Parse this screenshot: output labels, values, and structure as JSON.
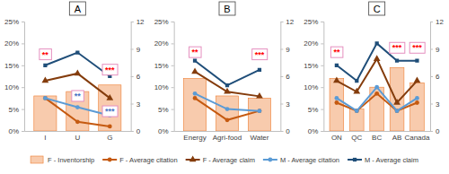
{
  "chart_data": [
    {
      "type": "bar",
      "title": "A",
      "categories": [
        "I",
        "U",
        "G"
      ],
      "series": [
        {
          "name": "F - Inventorship",
          "type": "bar",
          "color": "#f8cbad",
          "values": [
            8,
            9,
            10.5
          ]
        },
        {
          "name": "F - Average citation",
          "type": "line",
          "color": "#c55a11",
          "marker": "circle",
          "axis": "y2",
          "values": [
            3.6,
            1,
            0.5
          ]
        },
        {
          "name": "F - Average claim",
          "type": "line",
          "color": "#843c0c",
          "marker": "triangle",
          "axis": "y2",
          "values": [
            5.5,
            6.3,
            3.6
          ]
        },
        {
          "name": "M - Average citation",
          "type": "line",
          "color": "#5b9bd5",
          "marker": "circle",
          "axis": "y2",
          "values": [
            3.6,
            2.6,
            1.7
          ]
        },
        {
          "name": "M - Average claim",
          "type": "line",
          "color": "#1f4e79",
          "marker": "square",
          "axis": "y2",
          "values": [
            7.2,
            8.6,
            6
          ]
        }
      ],
      "ylim": [
        0,
        25
      ],
      "yticks": [
        {
          "value": 0,
          "label": "0%"
        },
        {
          "value": 5,
          "label": "5%"
        },
        {
          "value": 10,
          "label": "10%"
        },
        {
          "value": 15,
          "label": "15%"
        },
        {
          "value": 20,
          "label": "20%"
        },
        {
          "value": 25,
          "label": "25%"
        }
      ],
      "y2lim": [
        0,
        12
      ],
      "y2ticks": [
        0,
        3,
        6,
        9,
        12
      ],
      "legend": "bottom",
      "annotations": [
        {
          "text": "**",
          "x": "I",
          "y": 17.5,
          "color": "#ff0000"
        },
        {
          "text": "**",
          "x": "U",
          "y": 8,
          "color": "#4472c4"
        },
        {
          "text": "***",
          "x": "G",
          "y": 4.5,
          "color": "#4472c4"
        },
        {
          "text": "***",
          "x": "G",
          "y": 14,
          "color": "#ff0000"
        }
      ]
    },
    {
      "type": "bar",
      "title": "B",
      "categories": [
        "Energy",
        "Agri-food",
        "Water"
      ],
      "series": [
        {
          "name": "F - Inventorship",
          "type": "bar",
          "color": "#f8cbad",
          "values": [
            12,
            8,
            7.5
          ]
        },
        {
          "name": "F - Average citation",
          "type": "line",
          "color": "#c55a11",
          "marker": "circle",
          "axis": "y2",
          "values": [
            3.6,
            1.2,
            2.2
          ]
        },
        {
          "name": "F - Average claim",
          "type": "line",
          "color": "#843c0c",
          "marker": "triangle",
          "axis": "y2",
          "values": [
            6.5,
            4.3,
            3.8
          ]
        },
        {
          "name": "M - Average citation",
          "type": "line",
          "color": "#5b9bd5",
          "marker": "circle",
          "axis": "y2",
          "values": [
            4.1,
            2.4,
            2.2
          ]
        },
        {
          "name": "M - Average claim",
          "type": "line",
          "color": "#1f4e79",
          "marker": "square",
          "axis": "y2",
          "values": [
            7.7,
            5,
            6.7
          ]
        }
      ],
      "ylim": [
        0,
        25
      ],
      "yticks": [
        {
          "value": 0,
          "label": "0%"
        },
        {
          "value": 5,
          "label": "5%"
        },
        {
          "value": 10,
          "label": "10%"
        },
        {
          "value": 15,
          "label": "15%"
        },
        {
          "value": 20,
          "label": "20%"
        },
        {
          "value": 25,
          "label": "25%"
        }
      ],
      "y2lim": [
        0,
        12
      ],
      "y2ticks": [
        0,
        3,
        6,
        9,
        12
      ],
      "annotations": [
        {
          "text": "**",
          "x": "Energy",
          "y": 18,
          "color": "#ff0000"
        },
        {
          "text": "***",
          "x": "Water",
          "y": 17.5,
          "color": "#ff0000"
        }
      ]
    },
    {
      "type": "bar",
      "title": "C",
      "categories": [
        "ON",
        "QC",
        "BC",
        "AB",
        "Canada"
      ],
      "series": [
        {
          "name": "F - Inventorship",
          "type": "bar",
          "color": "#f8cbad",
          "values": [
            12,
            5,
            10,
            14.5,
            11
          ]
        },
        {
          "name": "F - Average citation",
          "type": "line",
          "color": "#c55a11",
          "marker": "circle",
          "axis": "y2",
          "values": [
            3.1,
            2.2,
            4.1,
            2.2,
            3.1
          ]
        },
        {
          "name": "F - Average claim",
          "type": "line",
          "color": "#843c0c",
          "marker": "triangle",
          "axis": "y2",
          "values": [
            5.5,
            4.3,
            7.9,
            3.1,
            5.5
          ]
        },
        {
          "name": "M - Average citation",
          "type": "line",
          "color": "#5b9bd5",
          "marker": "circle",
          "axis": "y2",
          "values": [
            3.6,
            2.2,
            4.8,
            2.2,
            3.6
          ]
        },
        {
          "name": "M - Average claim",
          "type": "line",
          "color": "#1f4e79",
          "marker": "square",
          "axis": "y2",
          "values": [
            7.2,
            5.5,
            9.6,
            7.7,
            7.7
          ]
        }
      ],
      "ylim": [
        0,
        25
      ],
      "yticks": [
        {
          "value": 0,
          "label": "0%"
        },
        {
          "value": 5,
          "label": "5%"
        },
        {
          "value": 10,
          "label": "10%"
        },
        {
          "value": 15,
          "label": "15%"
        },
        {
          "value": 20,
          "label": "20%"
        },
        {
          "value": 25,
          "label": "25%"
        }
      ],
      "y2lim": [
        0,
        12
      ],
      "y2ticks": [
        0,
        3,
        6,
        9,
        12
      ],
      "annotations": [
        {
          "text": "**",
          "x": "ON",
          "y": 18,
          "color": "#ff0000"
        },
        {
          "text": "***",
          "x": "AB",
          "y": 19,
          "color": "#ff0000"
        },
        {
          "text": "***",
          "x": "Canada",
          "y": 19,
          "color": "#ff0000"
        }
      ]
    }
  ]
}
